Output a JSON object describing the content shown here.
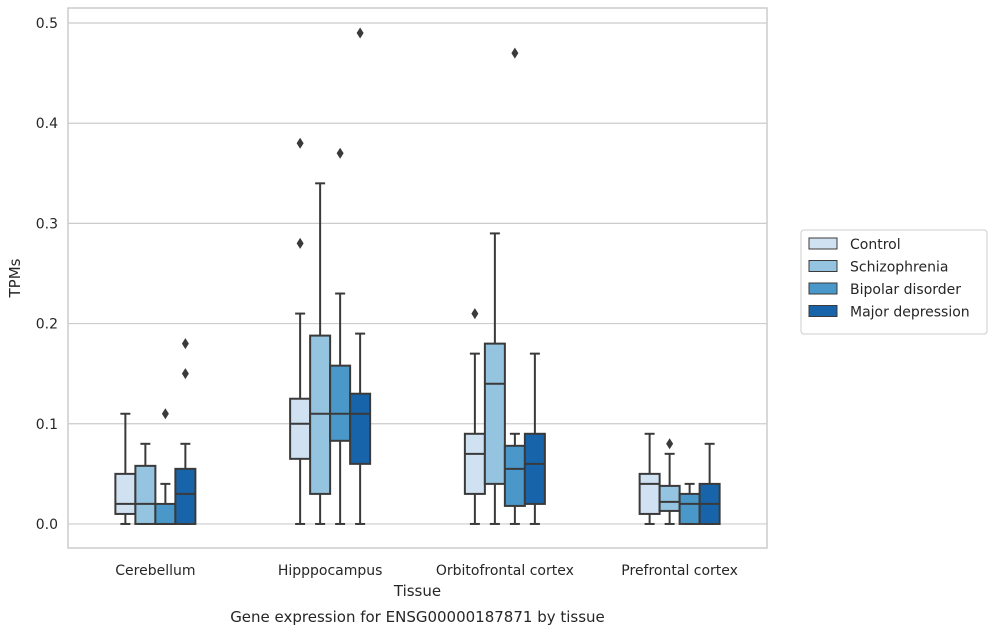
{
  "chart_data": {
    "type": "box",
    "title": "",
    "caption": "Gene expression for ENSG00000187871 by tissue",
    "xlabel": "Tissue",
    "ylabel": "TPMs",
    "ylim": [
      -0.024,
      0.515
    ],
    "yticks": [
      0.0,
      0.1,
      0.2,
      0.3,
      0.4,
      0.5
    ],
    "ytick_labels": [
      "0.0",
      "0.1",
      "0.2",
      "0.3",
      "0.4",
      "0.5"
    ],
    "grid": true,
    "legend_position": "right",
    "categories": [
      "Cerebellum",
      "Hipppocampus",
      "Orbitofrontal cortex",
      "Prefrontal cortex"
    ],
    "series": [
      {
        "name": "Control",
        "color": "#d0e1f2",
        "boxes": [
          {
            "whisker_low": 0.0,
            "q1": 0.01,
            "median": 0.02,
            "q3": 0.05,
            "whisker_high": 0.11,
            "outliers": []
          },
          {
            "whisker_low": 0.0,
            "q1": 0.065,
            "median": 0.1,
            "q3": 0.125,
            "whisker_high": 0.21,
            "outliers": [
              0.28,
              0.38
            ]
          },
          {
            "whisker_low": 0.0,
            "q1": 0.03,
            "median": 0.07,
            "q3": 0.09,
            "whisker_high": 0.17,
            "outliers": [
              0.21
            ]
          },
          {
            "whisker_low": 0.0,
            "q1": 0.01,
            "median": 0.04,
            "q3": 0.05,
            "whisker_high": 0.09,
            "outliers": []
          }
        ]
      },
      {
        "name": "Schizophrenia",
        "color": "#94c4df",
        "boxes": [
          {
            "whisker_low": 0.0,
            "q1": 0.0,
            "median": 0.02,
            "q3": 0.058,
            "whisker_high": 0.08,
            "outliers": []
          },
          {
            "whisker_low": 0.0,
            "q1": 0.03,
            "median": 0.11,
            "q3": 0.188,
            "whisker_high": 0.34,
            "outliers": []
          },
          {
            "whisker_low": 0.0,
            "q1": 0.04,
            "median": 0.14,
            "q3": 0.18,
            "whisker_high": 0.29,
            "outliers": []
          },
          {
            "whisker_low": 0.0,
            "q1": 0.013,
            "median": 0.022,
            "q3": 0.038,
            "whisker_high": 0.07,
            "outliers": [
              0.08
            ]
          }
        ]
      },
      {
        "name": "Bipolar disorder",
        "color": "#4a98c9",
        "boxes": [
          {
            "whisker_low": 0.0,
            "q1": 0.0,
            "median": 0.0,
            "q3": 0.02,
            "whisker_high": 0.04,
            "outliers": [
              0.11
            ]
          },
          {
            "whisker_low": 0.0,
            "q1": 0.083,
            "median": 0.11,
            "q3": 0.158,
            "whisker_high": 0.23,
            "outliers": [
              0.37
            ]
          },
          {
            "whisker_low": 0.0,
            "q1": 0.018,
            "median": 0.055,
            "q3": 0.078,
            "whisker_high": 0.09,
            "outliers": [
              0.47
            ]
          },
          {
            "whisker_low": 0.0,
            "q1": 0.0,
            "median": 0.02,
            "q3": 0.03,
            "whisker_high": 0.04,
            "outliers": []
          }
        ]
      },
      {
        "name": "Major depression",
        "color": "#1764ab",
        "boxes": [
          {
            "whisker_low": 0.0,
            "q1": 0.0,
            "median": 0.03,
            "q3": 0.055,
            "whisker_high": 0.08,
            "outliers": [
              0.15,
              0.18
            ]
          },
          {
            "whisker_low": 0.0,
            "q1": 0.06,
            "median": 0.11,
            "q3": 0.13,
            "whisker_high": 0.19,
            "outliers": [
              0.49
            ]
          },
          {
            "whisker_low": 0.0,
            "q1": 0.02,
            "median": 0.06,
            "q3": 0.09,
            "whisker_high": 0.17,
            "outliers": []
          },
          {
            "whisker_low": 0.0,
            "q1": 0.0,
            "median": 0.02,
            "q3": 0.04,
            "whisker_high": 0.08,
            "outliers": []
          }
        ]
      }
    ]
  }
}
